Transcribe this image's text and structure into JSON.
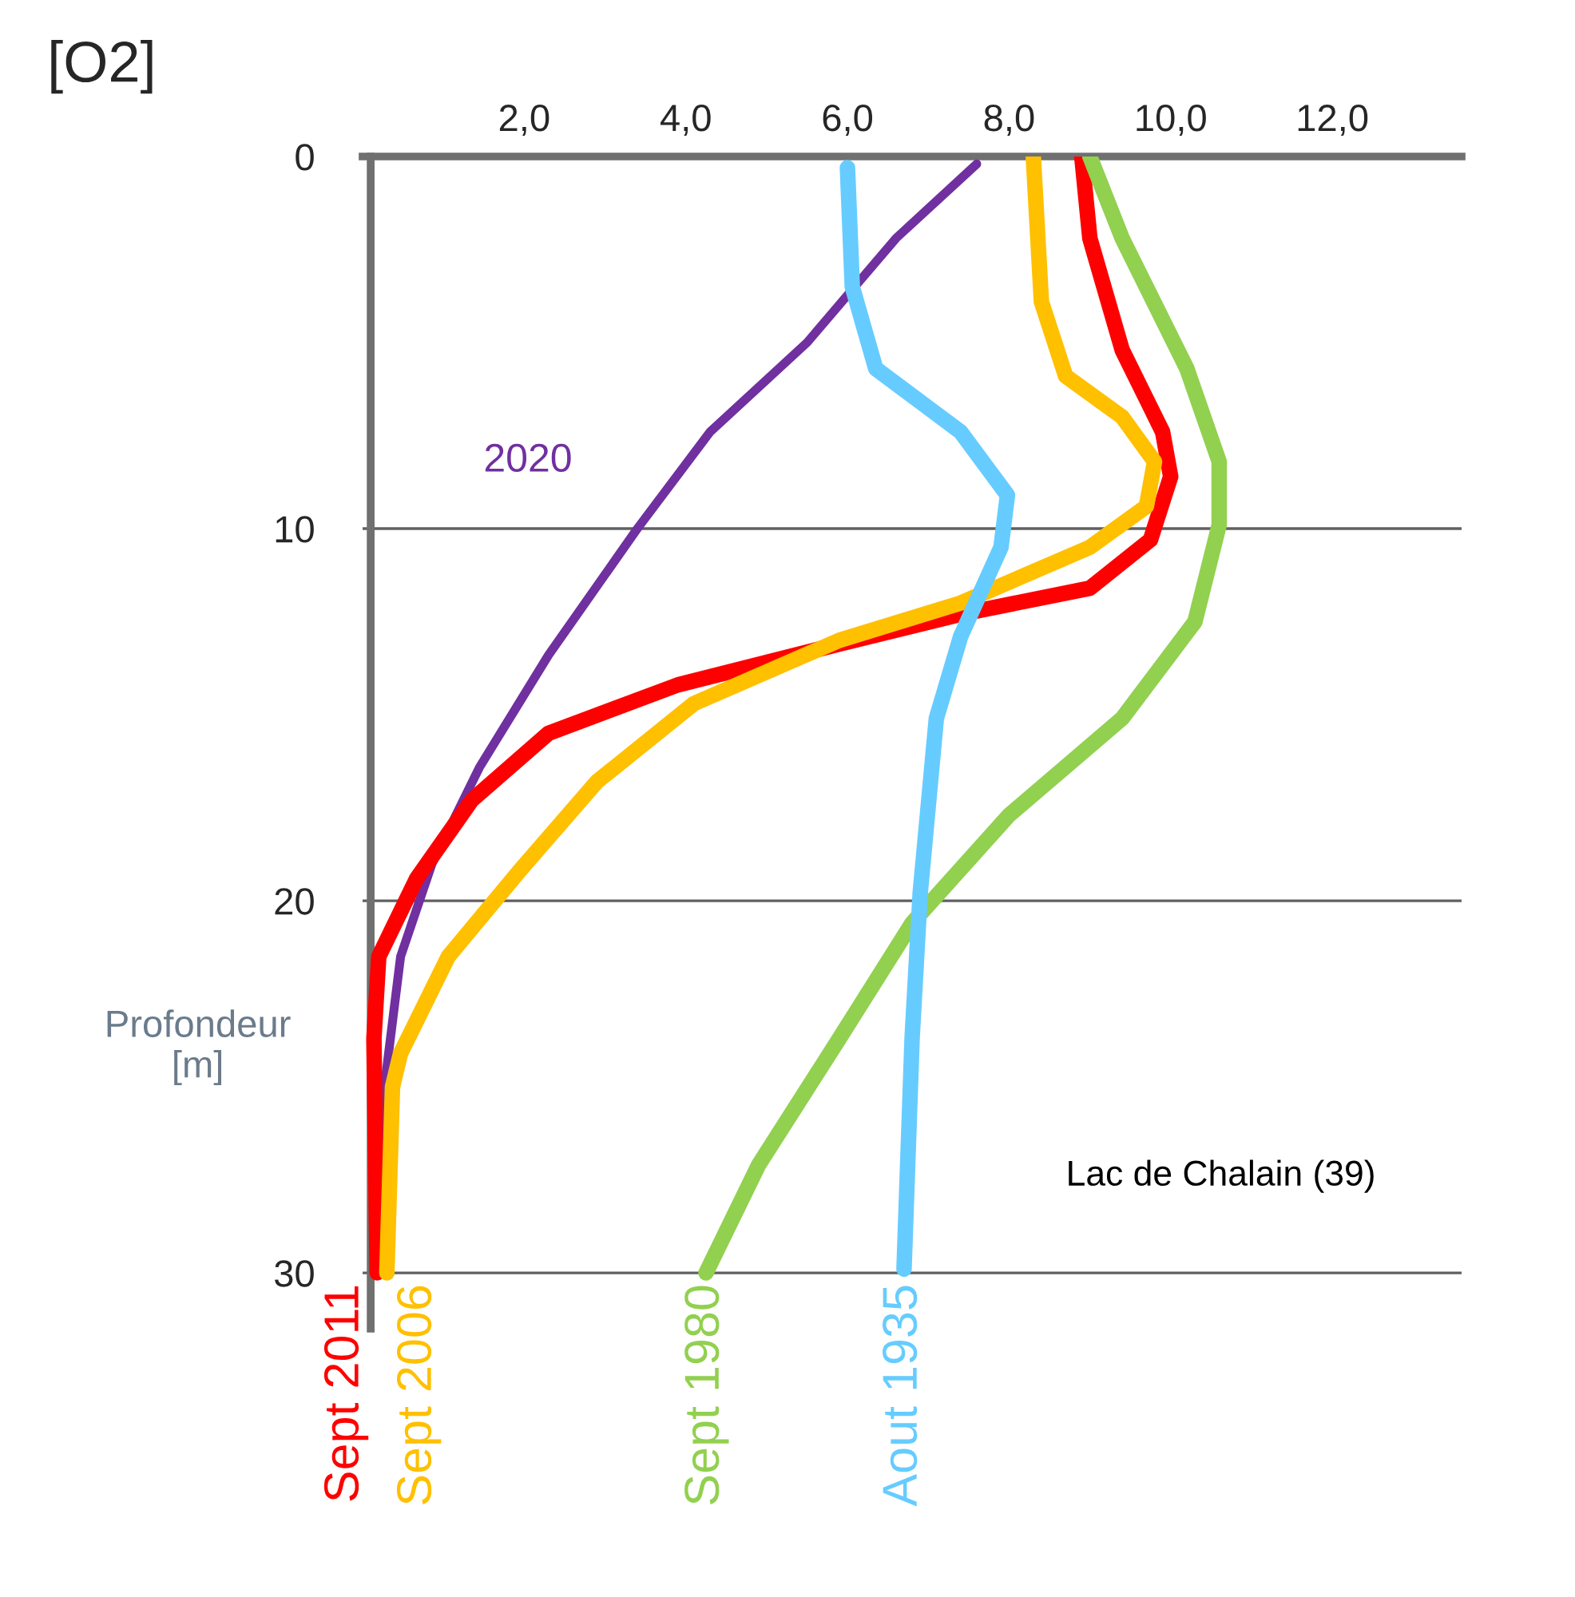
{
  "chart_data": {
    "type": "line",
    "title": "[O2]",
    "ylabel": "Profondeur\n[m]",
    "annotations": [
      "Lac de Chalain (39)",
      "2020"
    ],
    "xlim": [
      0,
      13.6
    ],
    "ylim": [
      31.5,
      0
    ],
    "xticks": [
      {
        "value": 2,
        "label": "2,0"
      },
      {
        "value": 4,
        "label": "4,0"
      },
      {
        "value": 6,
        "label": "6,0"
      },
      {
        "value": 8,
        "label": "8,0"
      },
      {
        "value": 10,
        "label": "10,0"
      },
      {
        "value": 12,
        "label": "12,0"
      }
    ],
    "yticks": [
      0,
      10,
      20,
      30
    ],
    "grid": "y",
    "marker": "none",
    "line_style": "solid",
    "series": [
      {
        "color": "#7030a0",
        "x": [
          7.6,
          6.6,
          5.5,
          4.3,
          3.4,
          2.3,
          1.45,
          0.86,
          0.47,
          0.27,
          0.2
        ],
        "values": [
          0.2,
          2.2,
          5.0,
          7.4,
          10,
          13.4,
          16.4,
          19,
          21.5,
          25,
          30
        ]
      },
      {
        "name": "Sept 2011",
        "color": "#ff0000",
        "x": [
          8.9,
          9.0,
          9.4,
          9.9,
          10.0,
          9.75,
          9.0,
          7.4,
          5.9,
          3.9,
          2.3,
          1.35,
          0.67,
          0.2,
          0.14,
          0.18
        ],
        "values": [
          0,
          2.2,
          5.2,
          7.4,
          8.6,
          10.3,
          11.6,
          12.3,
          13.1,
          14.2,
          15.5,
          17.3,
          19.4,
          21.5,
          23.7,
          30
        ]
      },
      {
        "name": "Sept 2006",
        "color": "#ffc000",
        "x": [
          8.3,
          8.4,
          8.7,
          9.4,
          9.8,
          9.7,
          9.0,
          7.4,
          5.9,
          4.1,
          2.9,
          1.94,
          1.06,
          0.47,
          0.37,
          0.3
        ],
        "values": [
          0,
          3.9,
          5.9,
          7,
          8.2,
          9.4,
          10.5,
          12,
          13,
          14.7,
          16.8,
          19.2,
          21.5,
          24.1,
          25,
          30
        ]
      },
      {
        "name": "Sept 1980",
        "color": "#92d050",
        "x": [
          9.0,
          9.4,
          10.2,
          10.6,
          10.6,
          10.3,
          9.4,
          8.0,
          6.8,
          5.9,
          4.9,
          4.25
        ],
        "values": [
          0,
          2.2,
          5.7,
          8.2,
          9.9,
          12.5,
          15.1,
          17.7,
          20.6,
          23.7,
          27.1,
          30
        ]
      },
      {
        "name": "Aout 1935",
        "color": "#66ccff",
        "x": [
          6.0,
          6.06,
          6.35,
          7.4,
          7.98,
          7.9,
          7.4,
          7.1,
          6.9,
          6.8,
          6.7
        ],
        "values": [
          0.3,
          3.5,
          5.7,
          7.4,
          9.1,
          10.5,
          12.9,
          15.1,
          19.8,
          23.7,
          29.9
        ]
      }
    ]
  }
}
